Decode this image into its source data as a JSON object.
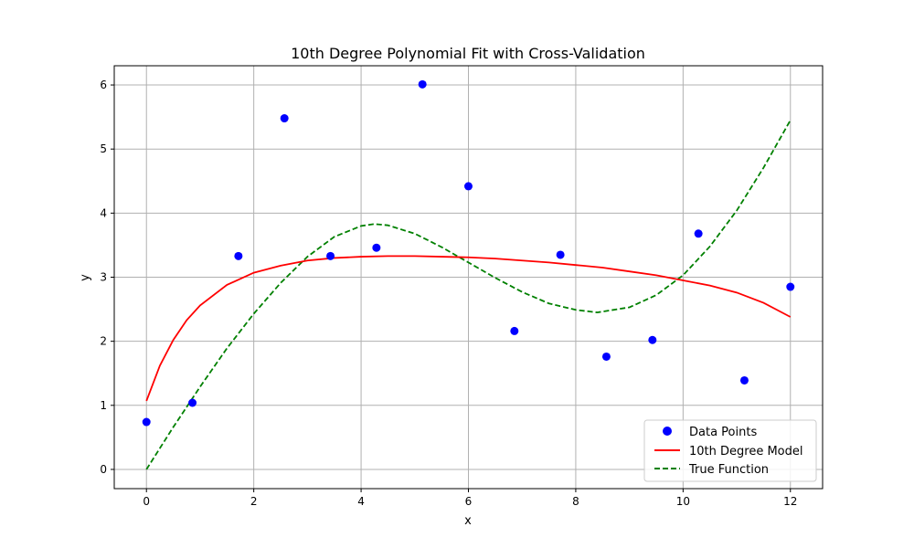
{
  "chart_data": {
    "type": "scatter",
    "title": "10th Degree Polynomial Fit with Cross-Validation",
    "xlabel": "x",
    "ylabel": "y",
    "xlim": [
      -0.6,
      12.6
    ],
    "ylim": [
      -0.3,
      6.3
    ],
    "xticks": [
      0,
      2,
      4,
      6,
      8,
      10,
      12
    ],
    "yticks": [
      0,
      1,
      2,
      3,
      4,
      5,
      6
    ],
    "grid": true,
    "legend_position": "lower-right",
    "series": [
      {
        "name": "Data Points",
        "kind": "scatter",
        "color": "#0000ff",
        "x": [
          0.0,
          0.857,
          1.714,
          2.571,
          3.429,
          4.286,
          5.143,
          6.0,
          6.857,
          7.714,
          8.571,
          9.429,
          10.286,
          11.143,
          12.0
        ],
        "y": [
          0.74,
          1.04,
          3.33,
          5.48,
          3.33,
          3.46,
          6.01,
          4.42,
          2.16,
          3.35,
          1.76,
          2.02,
          3.68,
          1.39,
          2.85
        ]
      },
      {
        "name": "10th Degree Model",
        "kind": "line",
        "color": "#ff0000",
        "dash": "solid",
        "x": [
          0,
          0.25,
          0.5,
          0.75,
          1.0,
          1.5,
          2.0,
          2.5,
          3.0,
          3.5,
          4.0,
          4.5,
          5.0,
          5.5,
          6.0,
          6.5,
          7.0,
          7.5,
          8.0,
          8.5,
          9.0,
          9.5,
          10.0,
          10.5,
          11.0,
          11.5,
          12.0
        ],
        "y": [
          1.07,
          1.62,
          2.02,
          2.33,
          2.56,
          2.88,
          3.07,
          3.18,
          3.26,
          3.3,
          3.32,
          3.33,
          3.33,
          3.32,
          3.31,
          3.29,
          3.26,
          3.23,
          3.19,
          3.15,
          3.09,
          3.03,
          2.95,
          2.87,
          2.76,
          2.6,
          2.38
        ]
      },
      {
        "name": "True Function",
        "kind": "line",
        "color": "#008000",
        "dash": "dashed",
        "x": [
          0,
          0.5,
          1.0,
          1.5,
          2.0,
          2.5,
          3.0,
          3.5,
          4.0,
          4.25,
          4.5,
          5.0,
          5.5,
          6.0,
          6.5,
          7.0,
          7.5,
          8.0,
          8.4,
          9.0,
          9.5,
          10.0,
          10.5,
          11.0,
          11.5,
          12.0
        ],
        "y": [
          0.0,
          0.66,
          1.29,
          1.89,
          2.43,
          2.91,
          3.32,
          3.63,
          3.8,
          3.83,
          3.81,
          3.68,
          3.47,
          3.23,
          2.99,
          2.77,
          2.59,
          2.49,
          2.45,
          2.53,
          2.72,
          3.03,
          3.48,
          4.04,
          4.71,
          5.45
        ]
      }
    ]
  }
}
